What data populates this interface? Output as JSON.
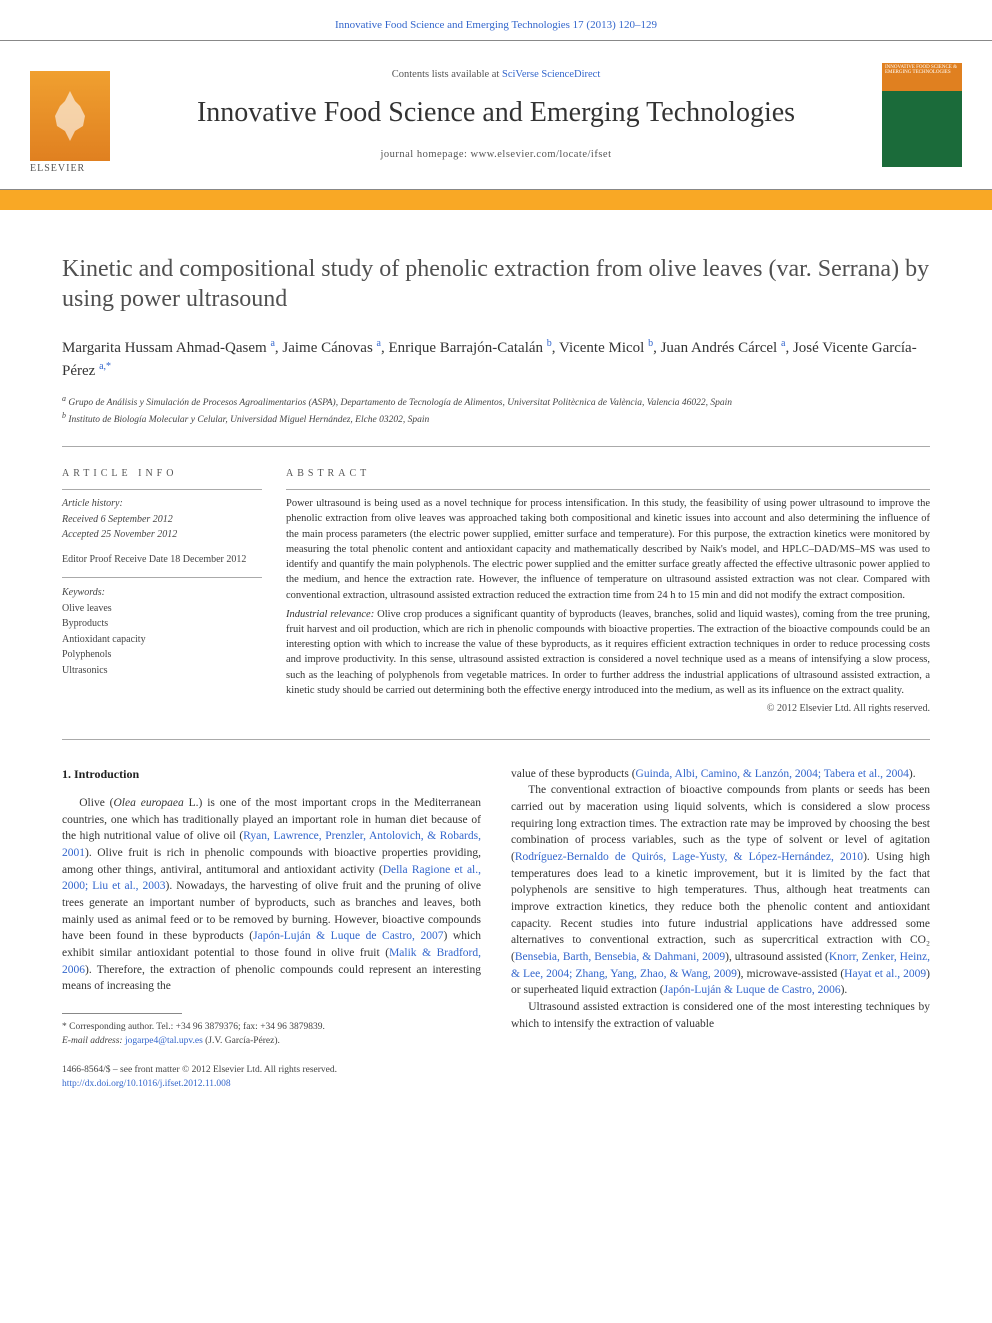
{
  "top_citation": {
    "journal_link": "Innovative Food Science and Emerging Technologies 17 (2013) 120–129"
  },
  "banner": {
    "contents_line_prefix": "Contents lists available at ",
    "contents_line_link": "SciVerse ScienceDirect",
    "journal_name": "Innovative Food Science and Emerging Technologies",
    "homepage_label": "journal homepage: ",
    "homepage_url": "www.elsevier.com/locate/ifset",
    "elsevier_word": "ELSEVIER",
    "cover_text": "INNOVATIVE FOOD SCIENCE & EMERGING TECHNOLOGIES"
  },
  "strip_color": "#f9a825",
  "article": {
    "title": "Kinetic and compositional study of phenolic extraction from olive leaves (var. Serrana) by using power ultrasound",
    "authors_html_parts": [
      {
        "name": "Margarita Hussam Ahmad-Qasem ",
        "sup": "a"
      },
      {
        "name": ", Jaime Cánovas ",
        "sup": "a"
      },
      {
        "name": ", Enrique Barrajón-Catalán ",
        "sup": "b"
      },
      {
        "name": ", Vicente Micol ",
        "sup": "b"
      },
      {
        "name": ", Juan Andrés Cárcel ",
        "sup": "a"
      },
      {
        "name": ", José Vicente García-Pérez ",
        "sup": "a,",
        "star": "*"
      }
    ],
    "affiliations": [
      {
        "sup": "a",
        "text": " Grupo de Análisis y Simulación de Procesos Agroalimentarios (ASPA), Departamento de Tecnología de Alimentos, Universitat Politècnica de València, Valencia 46022, Spain"
      },
      {
        "sup": "b",
        "text": " Instituto de Biología Molecular y Celular, Universidad Miguel Hernández, Elche 03202, Spain"
      }
    ]
  },
  "article_info": {
    "section_label": "ARTICLE INFO",
    "history_label": "Article history:",
    "received": "Received 6 September 2012",
    "accepted": "Accepted 25 November 2012",
    "editor_proof": "Editor Proof Receive Date 18 December 2012",
    "keywords_label": "Keywords:",
    "keywords": [
      "Olive leaves",
      "Byproducts",
      "Antioxidant capacity",
      "Polyphenols",
      "Ultrasonics"
    ]
  },
  "abstract": {
    "section_label": "ABSTRACT",
    "para1": "Power ultrasound is being used as a novel technique for process intensification. In this study, the feasibility of using power ultrasound to improve the phenolic extraction from olive leaves was approached taking both compositional and kinetic issues into account and also determining the influence of the main process parameters (the electric power supplied, emitter surface and temperature). For this purpose, the extraction kinetics were monitored by measuring the total phenolic content and antioxidant capacity and mathematically described by Naik's model, and HPLC–DAD/MS–MS was used to identify and quantify the main polyphenols. The electric power supplied and the emitter surface greatly affected the effective ultrasonic power applied to the medium, and hence the extraction rate. However, the influence of temperature on ultrasound assisted extraction was not clear. Compared with conventional extraction, ultrasound assisted extraction reduced the extraction time from 24 h to 15 min and did not modify the extract composition.",
    "relevance_label": "Industrial relevance: ",
    "para2": "Olive crop produces a significant quantity of byproducts (leaves, branches, solid and liquid wastes), coming from the tree pruning, fruit harvest and oil production, which are rich in phenolic compounds with bioactive properties. The extraction of the bioactive compounds could be an interesting option with which to increase the value of these byproducts, as it requires efficient extraction techniques in order to reduce processing costs and improve productivity. In this sense, ultrasound assisted extraction is considered a novel technique used as a means of intensifying a slow process, such as the leaching of polyphenols from vegetable matrices. In order to further address the industrial applications of ultrasound assisted extraction, a kinetic study should be carried out determining both the effective energy introduced into the medium, as well as its influence on the extract quality.",
    "copyright": "© 2012 Elsevier Ltd. All rights reserved."
  },
  "body": {
    "section1_title": "1. Introduction",
    "col1_p1_a": "Olive (",
    "col1_p1_b_italic": "Olea europaea",
    "col1_p1_c": " L.) is one of the most important crops in the Mediterranean countries, one which has traditionally played an important role in human diet because of the high nutritional value of olive oil (",
    "col1_ref1": "Ryan, Lawrence, Prenzler, Antolovich, & Robards, 2001",
    "col1_p1_d": "). Olive fruit is rich in phenolic compounds with bioactive properties providing, among other things, antiviral, antitumoral and antioxidant activity (",
    "col1_ref2": "Della Ragione et al., 2000; Liu et al., 2003",
    "col1_p1_e": "). Nowadays, the harvesting of olive fruit and the pruning of olive trees generate an important number of byproducts, such as branches and leaves, both mainly used as animal feed or to be removed by burning. However, bioactive compounds have been found in these byproducts (",
    "col1_ref3": "Japón-Luján & Luque de Castro, 2007",
    "col1_p1_f": ") which exhibit similar antioxidant potential to those found in olive fruit (",
    "col1_ref4": "Malik & Bradford, 2006",
    "col1_p1_g": "). Therefore, the extraction of phenolic compounds could represent an interesting means of increasing the",
    "col2_p0_a": "value of these byproducts (",
    "col2_ref0": "Guinda, Albi, Camino, & Lanzón, 2004; Tabera et al., 2004",
    "col2_p0_b": ").",
    "col2_p1_a": "The conventional extraction of bioactive compounds from plants or seeds has been carried out by maceration using liquid solvents, which is considered a slow process requiring long extraction times. The extraction rate may be improved by choosing the best combination of process variables, such as the type of solvent or level of agitation (",
    "col2_ref1": "Rodríguez-Bernaldo de Quirós, Lage-Yusty, & López-Hernández, 2010",
    "col2_p1_b": "). Using high temperatures does lead to a kinetic improvement, but it is limited by the fact that polyphenols are sensitive to high temperatures. Thus, although heat treatments can improve extraction kinetics, they reduce both the phenolic content and antioxidant capacity. Recent studies into future industrial applications have addressed some alternatives to conventional extraction, such as supercritical extraction with CO₂ (",
    "col2_ref2": "Bensebia, Barth, Bensebia, & Dahmani, 2009",
    "col2_p1_c": "), ultrasound assisted (",
    "col2_ref3": "Knorr, Zenker, Heinz, & Lee, 2004; Zhang, Yang, Zhao, & Wang, 2009",
    "col2_p1_d": "), microwave-assisted (",
    "col2_ref4": "Hayat et al., 2009",
    "col2_p1_e": ") or superheated liquid extraction (",
    "col2_ref5": "Japón-Luján & Luque de Castro, 2006",
    "col2_p1_f": ").",
    "col2_p2": "Ultrasound assisted extraction is considered one of the most interesting techniques by which to intensify the extraction of valuable"
  },
  "footnotes": {
    "corr_label": "* Corresponding author. Tel.: +34 96 3879376; fax: +34 96 3879839.",
    "email_label": "E-mail address: ",
    "email": "jogarpe4@tal.upv.es",
    "email_suffix": " (J.V. García-Pérez)."
  },
  "bottom": {
    "issn_line": "1466-8564/$ – see front matter © 2012 Elsevier Ltd. All rights reserved.",
    "doi": "http://dx.doi.org/10.1016/j.ifset.2012.11.008"
  },
  "colors": {
    "link": "#3366cc",
    "strip": "#f9a825",
    "cover_top": "#e08020",
    "cover_bottom": "#1b6b3a",
    "text": "#333333",
    "rule": "#aaaaaa"
  },
  "typography": {
    "title_fontsize_pt": 24,
    "journal_fontsize_pt": 28,
    "authors_fontsize_pt": 15,
    "body_fontsize_pt": 11.5,
    "abstract_fontsize_pt": 10.5,
    "info_fontsize_pt": 10,
    "font_family": "Georgia, Times New Roman, serif"
  }
}
